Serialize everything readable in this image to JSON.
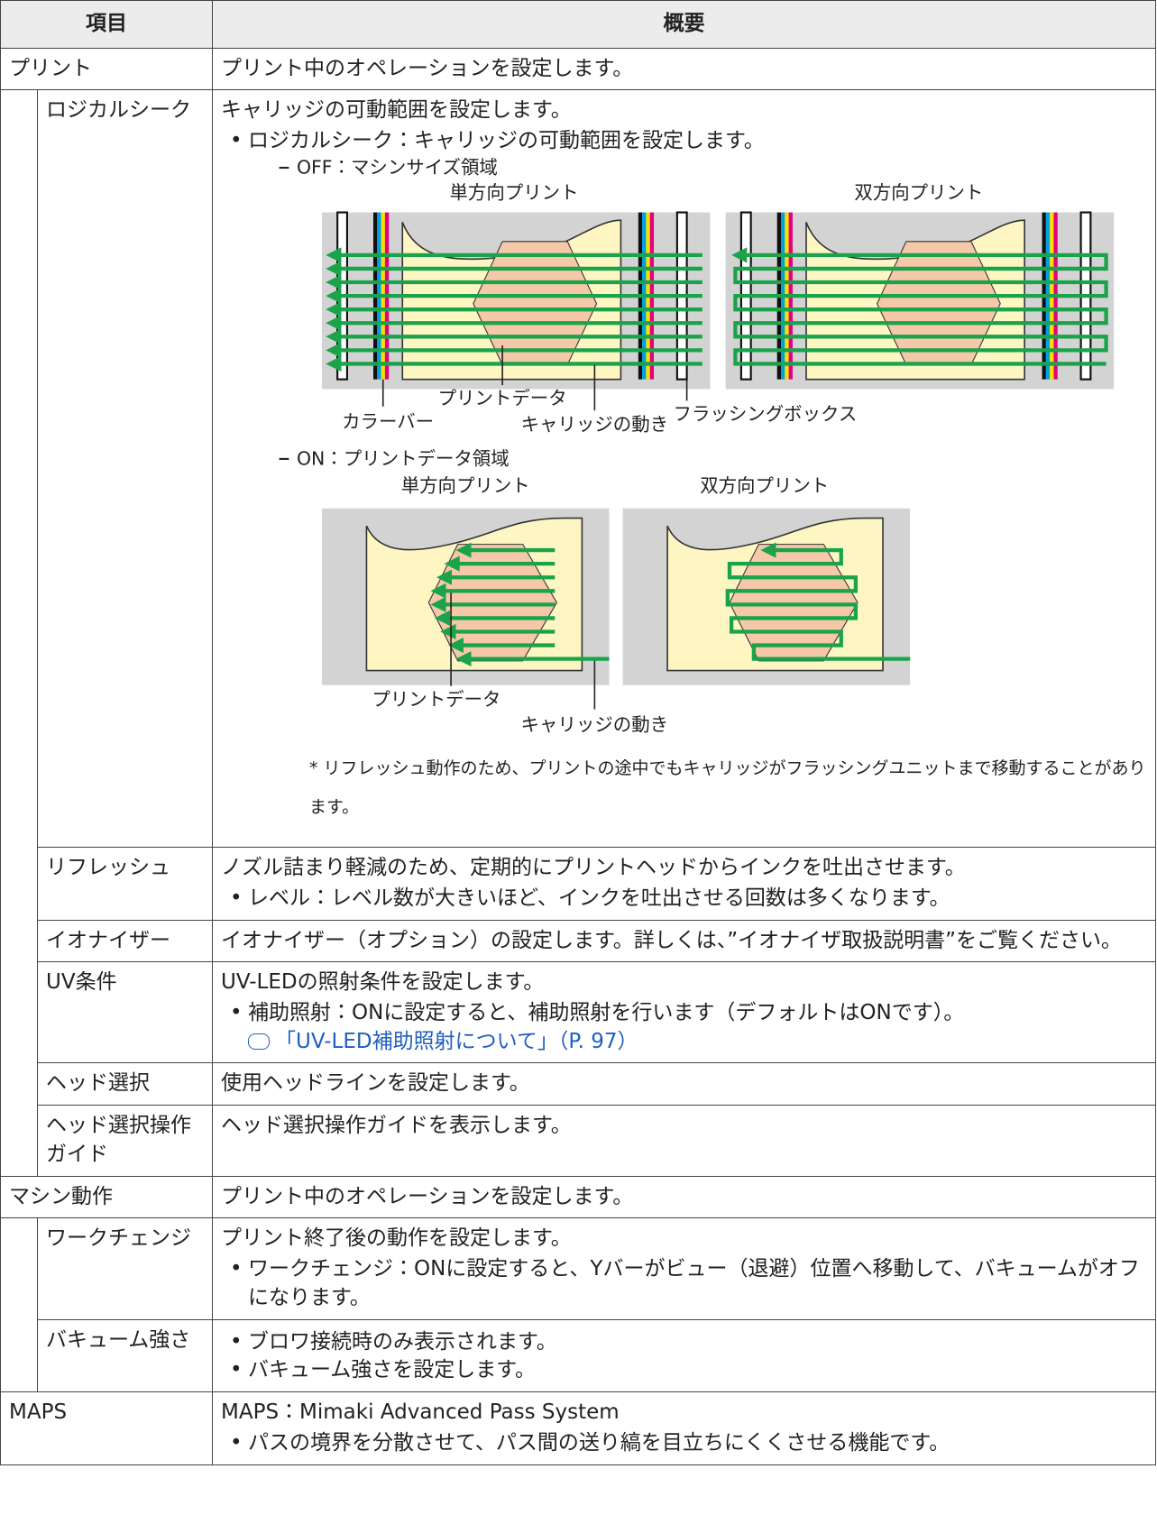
{
  "table": {
    "header": [
      "項目",
      "概要"
    ],
    "rows": [
      {
        "item": "プリント",
        "description": "プリント中のオペレーションを設定します。"
      },
      {
        "item": "ロジカルシーク",
        "description": "キャリッジの可動範囲を設定します。",
        "bullets": [
          "ロジカルシーク：キャリッジの可動範囲を設定します。"
        ],
        "off": {
          "label": "OFF：マシンサイズ領域",
          "left_title": "単方向プリント",
          "right_title": "双方向プリント",
          "callouts": [
            "カラーバー",
            "プリントデータ",
            "キャリッジの動き",
            "フラッシングボックス"
          ]
        },
        "on": {
          "label": "ON：プリントデータ領域",
          "left_title": "単方向プリント",
          "right_title": "双方向プリント",
          "callouts": [
            "プリントデータ",
            "キャリッジの動き"
          ]
        },
        "note": "* リフレッシュ動作のため、プリントの途中でもキャリッジがフラッシングユニットまで移動することがあります。"
      },
      {
        "item": "リフレッシュ",
        "description": "ノズル詰まり軽減のため、定期的にプリントヘッドからインクを吐出させます。",
        "bullets": [
          "レベル：レベル数が大きいほど、インクを吐出させる回数は多くなります。"
        ]
      },
      {
        "item": "イオナイザー",
        "description": "イオナイザー（オプション）の設定します。詳しくは、”イオナイザ取扱説明書”をご覧ください。"
      },
      {
        "item": "UV条件",
        "description": "UV-LEDの照射条件を設定します。",
        "bullets": [
          "補助照射：ONに設定すると、補助照射を行います（デフォルトはONです）。"
        ],
        "link": "「UV-LED補助照射について」（P. 97）"
      },
      {
        "item": "ヘッド選択",
        "description": "使用ヘッドラインを設定します。"
      },
      {
        "item": "ヘッド選択操作ガイド",
        "description": "ヘッド選択操作ガイドを表示します。"
      },
      {
        "item": "マシン動作",
        "description": "プリント中のオペレーションを設定します。"
      },
      {
        "item": "ワークチェンジ",
        "description": "プリント終了後の動作を設定します。",
        "bullets": [
          "ワークチェンジ：ONに設定すると、Yバーがビュー（退避）位置へ移動して、バキュームがオフになります。"
        ]
      },
      {
        "item": "バキューム強さ",
        "bullets": [
          "ブロワ接続時のみ表示されます。",
          "バキューム強さを設定します。"
        ]
      },
      {
        "item": "MAPS",
        "description": "MAPS：Mimaki Advanced Pass System",
        "bullets": [
          "パスの境界を分散させて、パス間の送り縞を目立ちにくくさせる機能です。"
        ]
      }
    ]
  }
}
